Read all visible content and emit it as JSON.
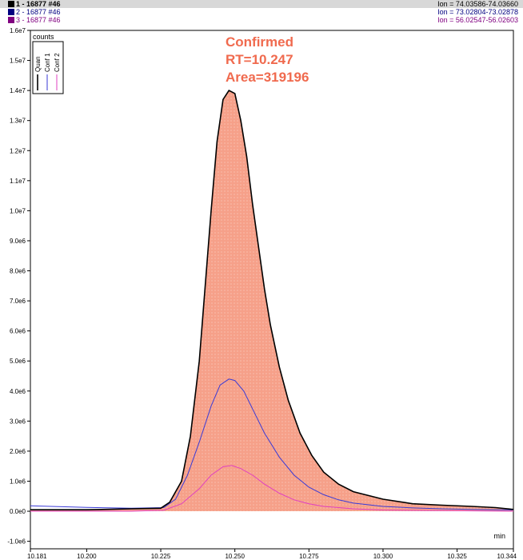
{
  "header": {
    "traces": [
      {
        "label": "1 - 16877 #46",
        "ion": "Ion = 74.03586-74.03660",
        "color": "#000000"
      },
      {
        "label": "2 - 16877 #46",
        "ion": "Ion = 73.02804-73.02878",
        "color": "#000080"
      },
      {
        "label": "3 - 16877 #46",
        "ion": "Ion = 56.02547-56.02603",
        "color": "#800080"
      }
    ]
  },
  "chart_data": {
    "type": "line",
    "ylabel": "counts",
    "xlabel": "min",
    "xlim": [
      10.181,
      10.344
    ],
    "ylim": [
      -1250000.0,
      16000000.0
    ],
    "x_ticks": [
      10.181,
      10.2,
      10.225,
      10.25,
      10.275,
      10.3,
      10.325,
      10.344
    ],
    "x_tick_labels": [
      "10.181",
      "10.200",
      "10.225",
      "10.250",
      "10.275",
      "10.300",
      "10.325",
      "10.344"
    ],
    "y_ticks": [
      -1000000.0,
      0,
      1000000.0,
      2000000.0,
      3000000.0,
      4000000.0,
      5000000.0,
      6000000.0,
      7000000.0,
      8000000.0,
      9000000.0,
      10000000.0,
      11000000.0,
      12000000.0,
      13000000.0,
      14000000.0,
      15000000.0,
      16000000.0
    ],
    "y_tick_labels": [
      "-1.0e6",
      "0.0e0",
      "1.0e6",
      "2.0e6",
      "3.0e6",
      "4.0e6",
      "5.0e6",
      "6.0e6",
      "7.0e6",
      "8.0e6",
      "9.0e6",
      "1.0e7",
      "1.1e7",
      "1.2e7",
      "1.3e7",
      "1.4e7",
      "1.5e7",
      "1.6e7"
    ],
    "legend": {
      "placement": "top-left",
      "entries": [
        "Quan",
        "Conf 1",
        "Conf 2"
      ]
    },
    "annotation": [
      "Confirmed",
      "RT=10.247",
      "Area=319196"
    ],
    "annotation_color": "#f06a4e",
    "fill_color": "#f6a089",
    "series": [
      {
        "name": "Quan",
        "color": "#000000",
        "x": [
          10.181,
          10.2,
          10.215,
          10.225,
          10.228,
          10.232,
          10.235,
          10.238,
          10.24,
          10.242,
          10.244,
          10.246,
          10.248,
          10.25,
          10.252,
          10.254,
          10.256,
          10.258,
          10.26,
          10.262,
          10.265,
          10.268,
          10.272,
          10.276,
          10.28,
          10.285,
          10.29,
          10.3,
          10.31,
          10.32,
          10.33,
          10.338,
          10.344
        ],
        "y": [
          50000.0,
          50000.0,
          80000.0,
          100000.0,
          300000.0,
          1000000.0,
          2500000.0,
          5000000.0,
          7500000.0,
          10000000.0,
          12300000.0,
          13700000.0,
          14000000.0,
          13900000.0,
          13000000.0,
          11800000.0,
          10200000.0,
          8800000.0,
          7400000.0,
          6200000.0,
          4800000.0,
          3700000.0,
          2600000.0,
          1850000.0,
          1300000.0,
          900000.0,
          650000.0,
          400000.0,
          250000.0,
          200000.0,
          160000.0,
          120000.0,
          60000.0
        ]
      },
      {
        "name": "Conf 1",
        "color": "#3a3ad6",
        "x": [
          10.181,
          10.2,
          10.215,
          10.226,
          10.23,
          10.234,
          10.238,
          10.242,
          10.245,
          10.248,
          10.25,
          10.253,
          10.256,
          10.26,
          10.265,
          10.27,
          10.275,
          10.28,
          10.285,
          10.29,
          10.3,
          10.31,
          10.32,
          10.33,
          10.344
        ],
        "y": [
          180000.0,
          130000.0,
          100000.0,
          120000.0,
          400000.0,
          1200000.0,
          2300000.0,
          3500000.0,
          4200000.0,
          4400000.0,
          4350000.0,
          4000000.0,
          3400000.0,
          2600000.0,
          1800000.0,
          1200000.0,
          800000.0,
          550000.0,
          380000.0,
          270000.0,
          160000.0,
          110000.0,
          80000.0,
          60000.0,
          40000.0
        ]
      },
      {
        "name": "Conf 2",
        "color": "#e040c0",
        "x": [
          10.181,
          10.215,
          10.226,
          10.232,
          10.238,
          10.242,
          10.246,
          10.249,
          10.252,
          10.256,
          10.26,
          10.265,
          10.27,
          10.275,
          10.28,
          10.29,
          10.3,
          10.32,
          10.344
        ],
        "y": [
          0.0,
          0.0,
          30000.0,
          250000.0,
          750000.0,
          1200000.0,
          1480000.0,
          1520000.0,
          1420000.0,
          1200000.0,
          900000.0,
          600000.0,
          380000.0,
          250000.0,
          160000.0,
          80000.0,
          40000.0,
          20000.0,
          0.0
        ]
      }
    ]
  }
}
